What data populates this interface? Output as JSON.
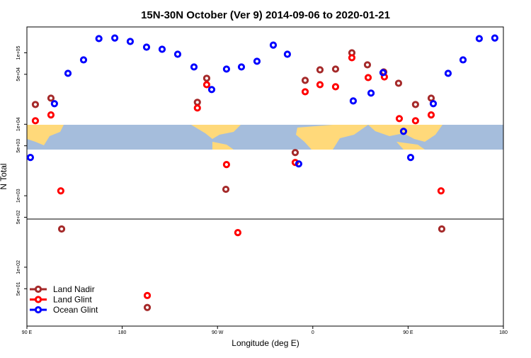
{
  "chart_data": {
    "type": "scatter",
    "title": "15N-30N October (Ver 9)   2014-09-06 to 2020-01-21",
    "xlabel": "Longitude (deg E)",
    "ylabel": "N Total",
    "log_y": true,
    "legend": "lower left",
    "xlim": [
      90,
      540
    ],
    "ylim": [
      15,
      230000
    ],
    "xticks": [
      {
        "value": 90,
        "label": "90 E"
      },
      {
        "value": 180,
        "label": "180"
      },
      {
        "value": 270,
        "label": "90 W"
      },
      {
        "value": 360,
        "label": "0"
      },
      {
        "value": 450,
        "label": "90 E"
      },
      {
        "value": 540,
        "label": "180"
      }
    ],
    "yticks": [
      {
        "value": 50,
        "label": "5e+01"
      },
      {
        "value": 100,
        "label": "1e+02"
      },
      {
        "value": 500,
        "label": "5e+02"
      },
      {
        "value": 1000,
        "label": "1e+03"
      },
      {
        "value": 5000,
        "label": "5e+03"
      },
      {
        "value": 10000,
        "label": "1e+04"
      },
      {
        "value": 50000,
        "label": "5e+04"
      },
      {
        "value": 100000,
        "label": "1e+05"
      }
    ],
    "series": [
      {
        "name": "Land Nadir",
        "color": "#a52a2a",
        "x": [
          98,
          112.7,
          122.8,
          203.7,
          251,
          259.8,
          277.9,
          343.4,
          352.8,
          366.8,
          381.5,
          396.9,
          411.6,
          427,
          441,
          457,
          471.8,
          481.8
        ],
        "values": [
          18900,
          23200,
          343,
          27.3,
          20300,
          44000,
          1230,
          4020,
          41100,
          57800,
          59200,
          100000,
          67900,
          54000,
          37500,
          18900,
          23200,
          343
        ]
      },
      {
        "name": "Land Glint",
        "color": "#ff0000",
        "x": [
          98,
          112.7,
          122,
          203.7,
          251,
          259.8,
          278.5,
          289.2,
          343.4,
          352.8,
          366.8,
          381.5,
          396.9,
          412.3,
          427.6,
          441.7,
          457,
          471.8,
          481.1
        ],
        "values": [
          11200,
          13500,
          1170,
          40.2,
          16900,
          35800,
          2730,
          305,
          2920,
          28500,
          35800,
          33500,
          85300,
          45000,
          46000,
          12000,
          11200,
          13500,
          1170
        ]
      },
      {
        "name": "Ocean Glint",
        "color": "#0000ff",
        "x": [
          93.3,
          116,
          128.8,
          143.5,
          158,
          173,
          187.6,
          203,
          217.7,
          232.4,
          247.8,
          264.5,
          278.5,
          292.6,
          307.3,
          322.7,
          336,
          346.7,
          398.2,
          415,
          426.3,
          445.7,
          452.4,
          473.8,
          487.8,
          501.9,
          517.2,
          531.9
        ],
        "values": [
          3430,
          19400,
          51600,
          79600,
          158000,
          161000,
          144000,
          120000,
          112000,
          95500,
          63400,
          30600,
          59200,
          63400,
          76100,
          128000,
          95500,
          2790,
          21200,
          27300,
          52800,
          7960,
          3430,
          19400,
          51600,
          79600,
          158000,
          161000
        ]
      }
    ]
  }
}
